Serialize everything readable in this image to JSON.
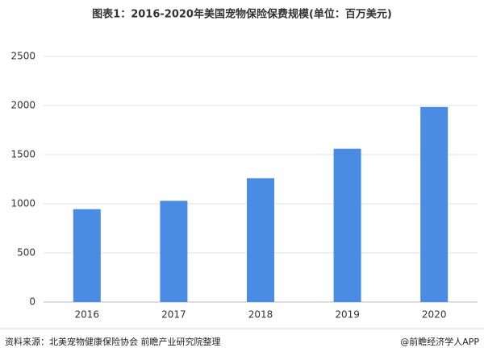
{
  "chart_data": {
    "type": "bar",
    "title": "图表1：2016-2020年美国宠物保险保费规模(单位：百万美元)",
    "categories": [
      "2016",
      "2017",
      "2018",
      "2019",
      "2020"
    ],
    "values": [
      945,
      1030,
      1260,
      1560,
      1985
    ],
    "color": "#4a8ce3",
    "ylim": [
      0,
      2500
    ],
    "yticks": [
      0,
      500,
      1000,
      1500,
      2000,
      2500
    ],
    "grid": true,
    "source": "资料来源：北美宠物健康保险协会 前瞻产业研究院整理",
    "credit": "@前瞻经济学人APP"
  }
}
